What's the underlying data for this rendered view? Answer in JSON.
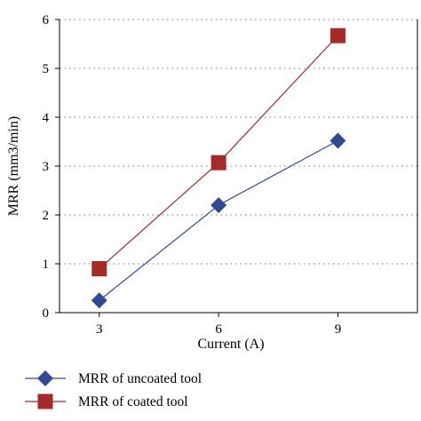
{
  "chart_data": {
    "type": "line",
    "title": "",
    "xlabel": "Current (A)",
    "ylabel": "MRR (mm3/min)",
    "categories": [
      3,
      6,
      9
    ],
    "xlim": [
      2,
      11
    ],
    "ylim": [
      0,
      6
    ],
    "yticks": [
      0,
      1,
      2,
      3,
      4,
      5,
      6
    ],
    "grid": "horizontal-dotted",
    "legend_position": "bottom",
    "series": [
      {
        "name": "MRR of uncoated tool",
        "x": [
          3,
          6,
          9
        ],
        "values": [
          0.25,
          2.2,
          3.52
        ],
        "color": "#2e4a94",
        "marker": "diamond"
      },
      {
        "name": "MRR of coated tool",
        "x": [
          3,
          6,
          9
        ],
        "values": [
          0.9,
          3.07,
          5.67
        ],
        "color": "#a52a2a",
        "marker": "square"
      }
    ]
  }
}
